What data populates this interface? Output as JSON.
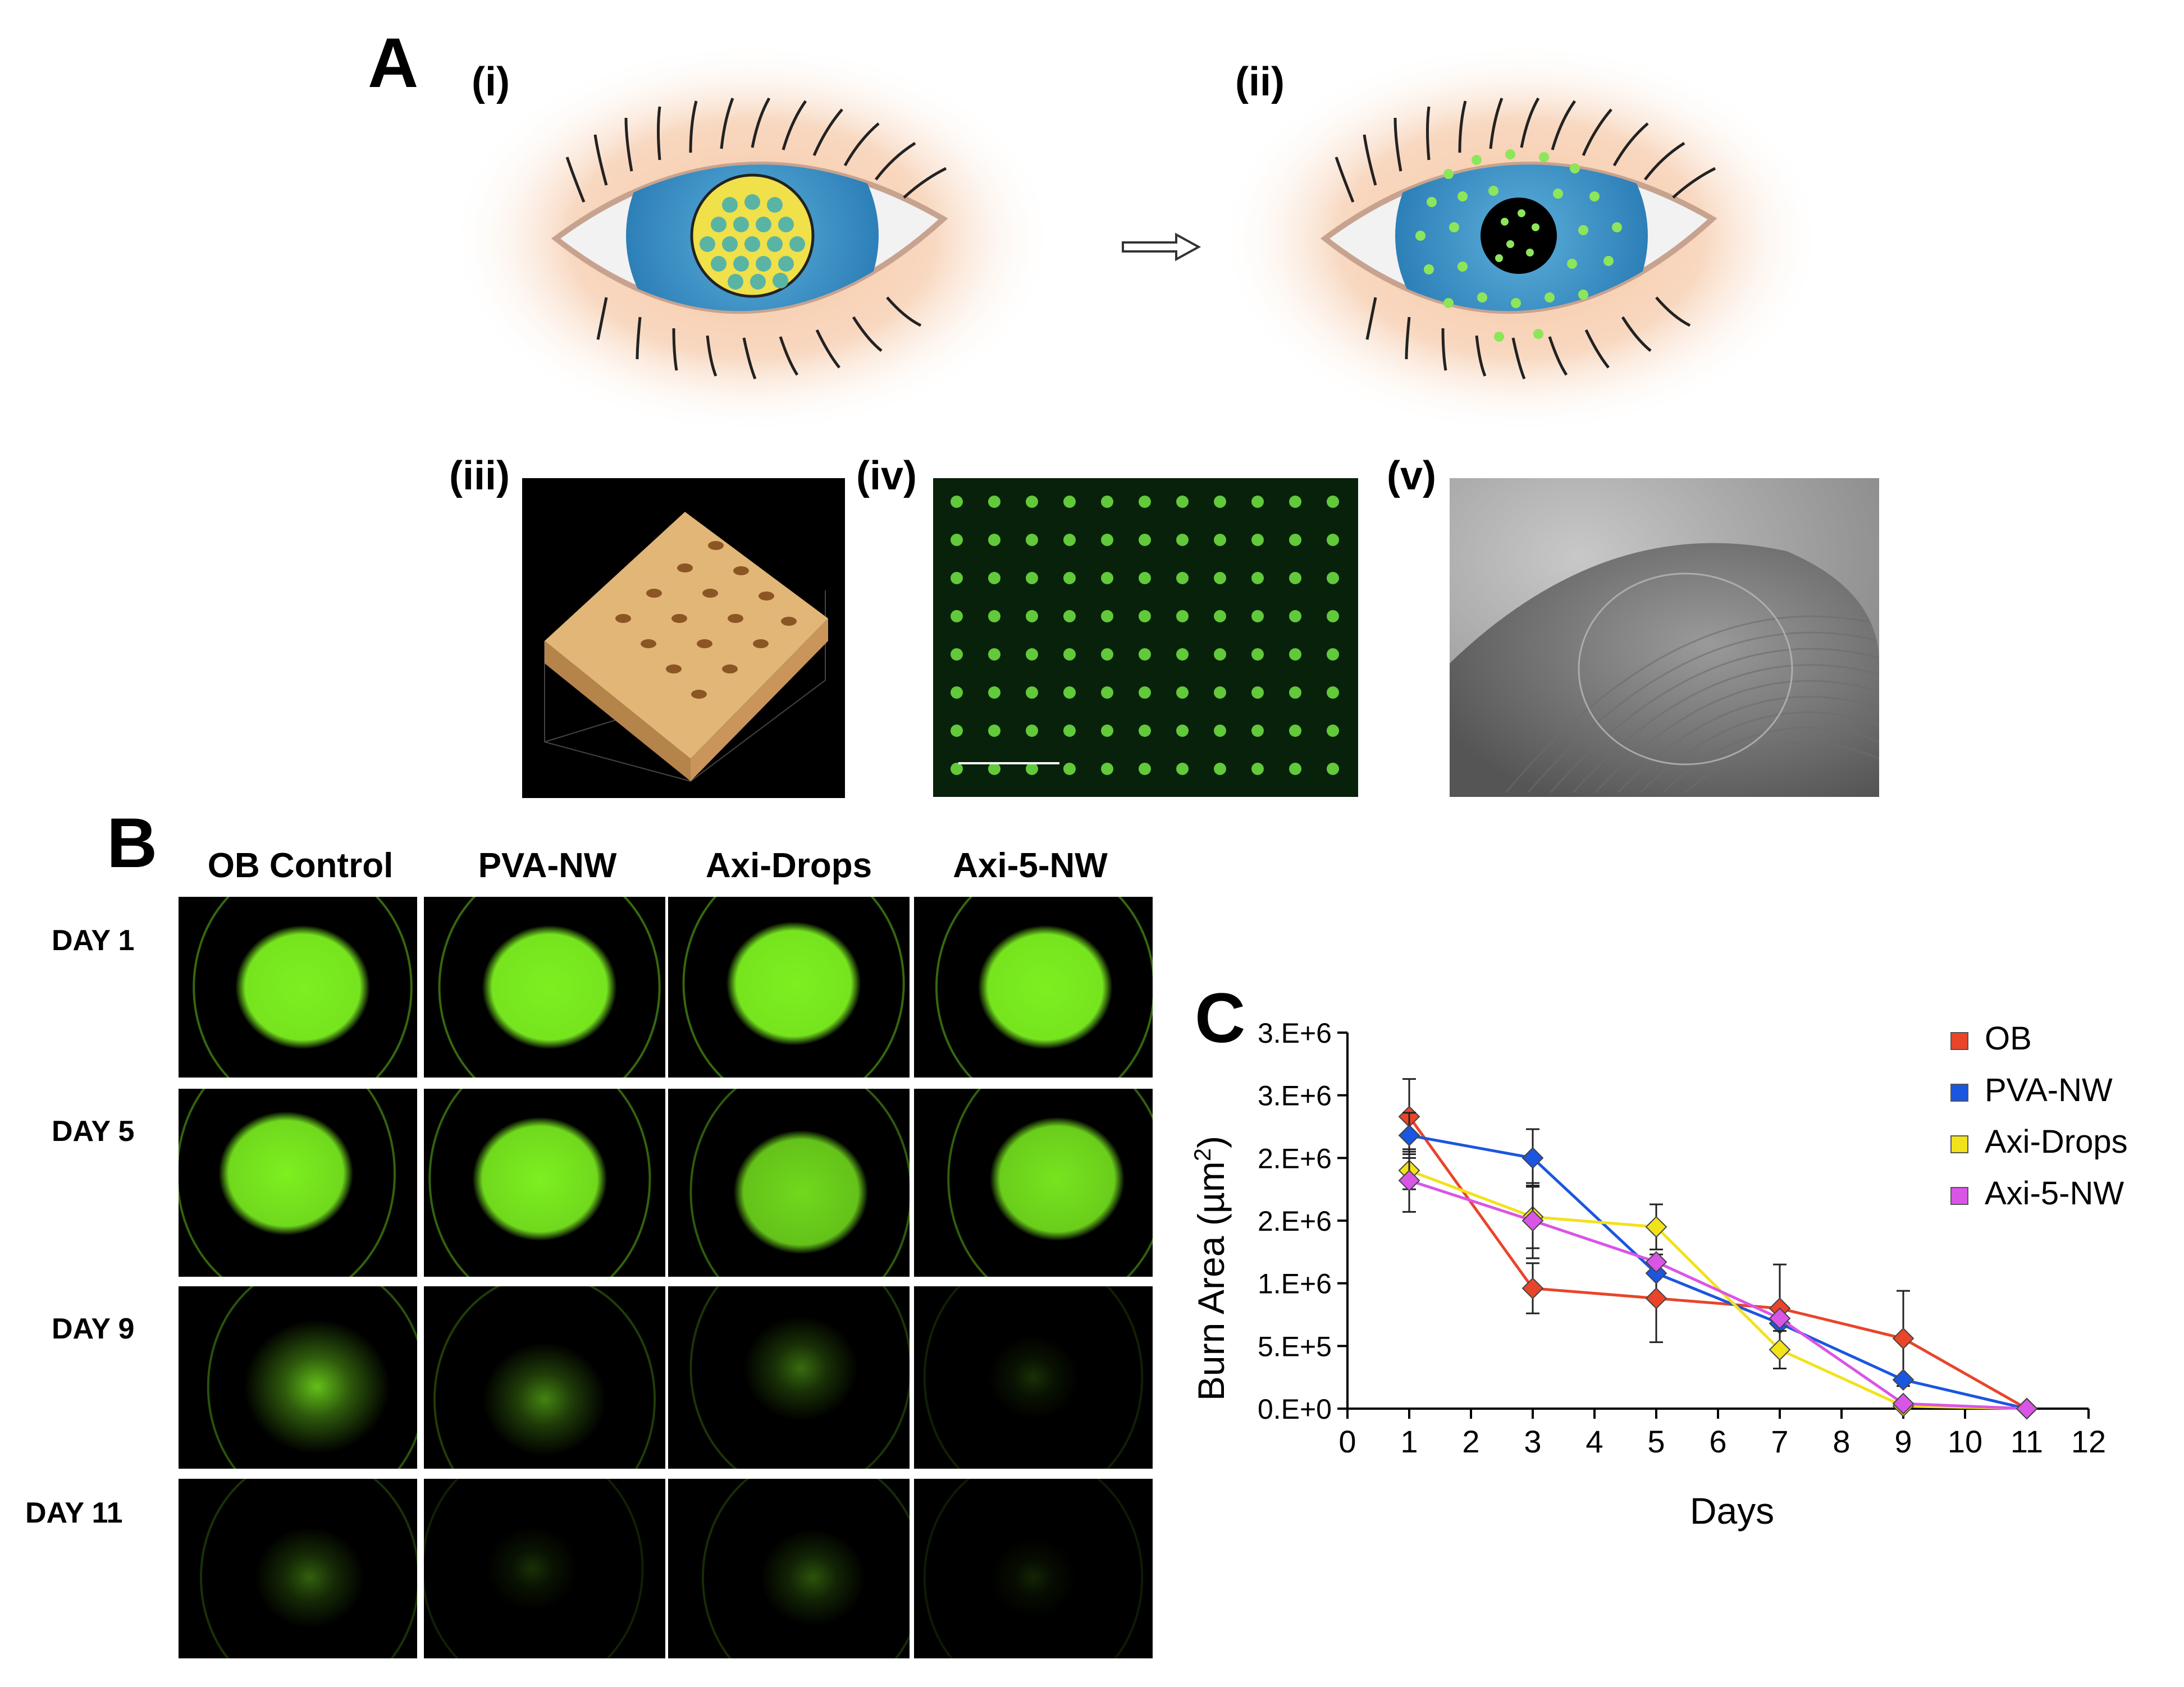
{
  "panel_a": {
    "letter": "A",
    "labels": [
      "(i)",
      "(ii)",
      "(iii)",
      "(iv)",
      "(v)"
    ]
  },
  "panel_b": {
    "letter": "B",
    "columns": [
      "OB Control",
      "PVA-NW",
      "Axi-Drops",
      "Axi-5-NW"
    ],
    "rows": [
      "DAY 1",
      "DAY 5",
      "DAY 9",
      "DAY 11"
    ],
    "spot_intensity": [
      [
        1.0,
        1.0,
        1.0,
        1.0
      ],
      [
        0.95,
        0.95,
        0.85,
        0.9
      ],
      [
        0.75,
        0.5,
        0.4,
        0.15
      ],
      [
        0.35,
        0.15,
        0.3,
        0.1
      ]
    ],
    "spot_color": "#7cf020"
  },
  "chart_data": {
    "type": "line",
    "letter": "C",
    "xlabel": "Days",
    "ylabel_main": "Burn Area (µm",
    "ylabel_sup": "2",
    "ylabel_end": ")",
    "xlim": [
      0,
      12
    ],
    "ylim": [
      0,
      3000000
    ],
    "x_ticks": [
      "0",
      "1",
      "2",
      "3",
      "4",
      "5",
      "6",
      "7",
      "8",
      "9",
      "10",
      "11",
      "12"
    ],
    "y_ticks": [
      {
        "value": 0,
        "label": "0.E+0"
      },
      {
        "value": 500000,
        "label": "5.E+5"
      },
      {
        "value": 1000000,
        "label": "1.E+6"
      },
      {
        "value": 1500000,
        "label": "2.E+6"
      },
      {
        "value": 2000000,
        "label": "2.E+6"
      },
      {
        "value": 2500000,
        "label": "3.E+6"
      },
      {
        "value": 3000000,
        "label": "3.E+6"
      }
    ],
    "legend_position": "top-right",
    "series": [
      {
        "name": "OB",
        "color": "#e8452a",
        "x": [
          1,
          3,
          5,
          7,
          9,
          11
        ],
        "y": [
          2330000,
          960000,
          880000,
          800000,
          560000,
          0
        ],
        "err": [
          300000,
          200000,
          350000,
          350000,
          380000,
          0
        ]
      },
      {
        "name": "PVA-NW",
        "color": "#1a56e0",
        "x": [
          1,
          3,
          5,
          7,
          9,
          11
        ],
        "y": [
          2180000,
          2000000,
          1080000,
          680000,
          230000,
          0
        ],
        "err": [
          180000,
          230000,
          0,
          0,
          0,
          0
        ]
      },
      {
        "name": "Axi-Drops",
        "color": "#f2e21a",
        "x": [
          1,
          3,
          5,
          7,
          9,
          11
        ],
        "y": [
          1900000,
          1530000,
          1450000,
          470000,
          20000,
          0
        ],
        "err": [
          150000,
          250000,
          180000,
          150000,
          0,
          0
        ]
      },
      {
        "name": "Axi-5-NW",
        "color": "#d955e6",
        "x": [
          1,
          3,
          5,
          7,
          9,
          11
        ],
        "y": [
          1820000,
          1500000,
          1170000,
          720000,
          40000,
          0
        ],
        "err": [
          250000,
          300000,
          0,
          0,
          0,
          0
        ]
      }
    ]
  }
}
